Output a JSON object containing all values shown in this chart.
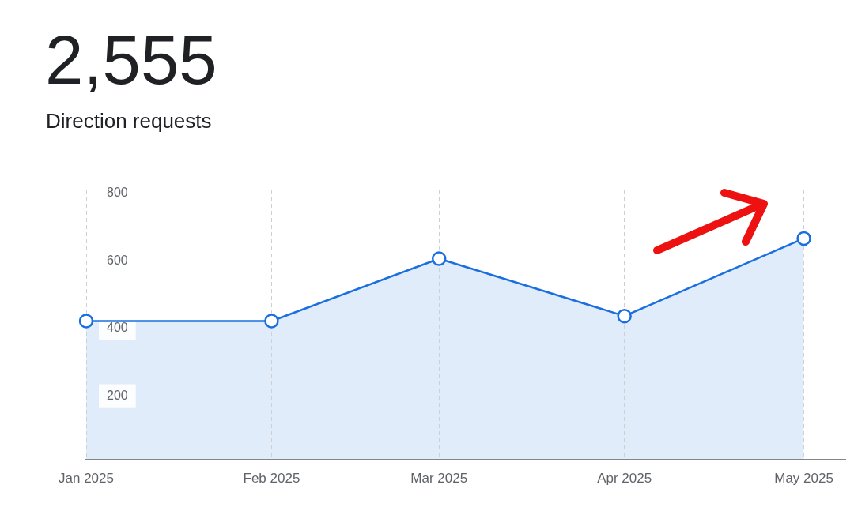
{
  "chart_data": {
    "type": "area",
    "title": "2,555",
    "subtitle": "Direction requests",
    "x": [
      "2025-01",
      "2025-02",
      "2025-03",
      "2025-04",
      "2025-05"
    ],
    "series": [
      {
        "color": "#1a6fe0",
        "values": [
          410,
          410,
          595,
          425,
          655
        ]
      }
    ],
    "xlim": [
      "2025-01",
      "2025-05-08"
    ],
    "xticks": [
      {
        "value": "2025-01",
        "label": "Jan 2025"
      },
      {
        "value": "2025-02",
        "label": "Feb 2025"
      },
      {
        "value": "2025-03",
        "label": "Mar 2025"
      },
      {
        "value": "2025-04",
        "label": "Apr 2025"
      },
      {
        "value": "2025-05",
        "label": "May 2025"
      }
    ],
    "ylim": [
      0,
      800
    ],
    "yticks": [
      200,
      400,
      600,
      800
    ],
    "grid": "x",
    "marker": "circle",
    "legend": false
  }
}
